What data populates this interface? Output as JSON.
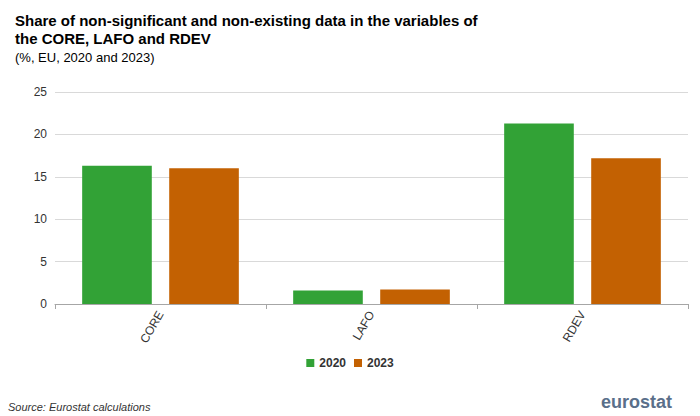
{
  "chart_data": {
    "type": "bar",
    "title": "Share of non-significant and non-existing data in the variables of the CORE, LAFO and RDEV",
    "subtitle": "(%, EU, 2020 and 2023)",
    "source": "Source: Eurostat calculations",
    "logo_text": "eurostat",
    "categories": [
      "CORE",
      "LAFO",
      "RDEV"
    ],
    "series": [
      {
        "name": "2020",
        "color": "#32a236",
        "values": [
          16.3,
          1.6,
          21.3
        ]
      },
      {
        "name": "2023",
        "color": "#c36102",
        "values": [
          16.0,
          1.7,
          17.2
        ]
      }
    ],
    "ylim": [
      0,
      25
    ],
    "yticks": [
      0,
      5,
      10,
      15,
      20,
      25
    ],
    "grid": true,
    "legend": "bottom"
  }
}
